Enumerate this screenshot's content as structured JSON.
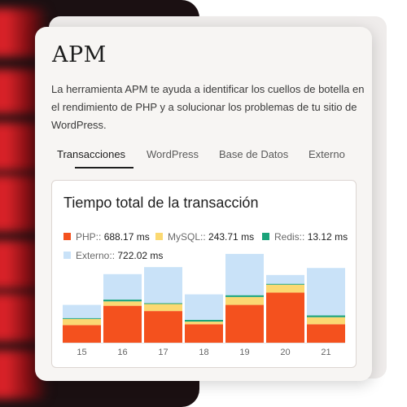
{
  "card": {
    "title": "APM",
    "description": "La herramienta APM te ayuda a identificar los cuellos de botella en el rendimiento de PHP y a solucionar los problemas de tu sitio de WordPress."
  },
  "tabs": [
    {
      "label": "Transacciones",
      "active": true
    },
    {
      "label": "WordPress",
      "active": false
    },
    {
      "label": "Base de Datos",
      "active": false
    },
    {
      "label": "Externo",
      "active": false
    }
  ],
  "panel": {
    "title": "Tiempo total de la transacción",
    "legend": [
      {
        "label": "PHP::",
        "value": "688.17 ms",
        "color": "#f4511e"
      },
      {
        "label": "MySQL::",
        "value": "243.71 ms",
        "color": "#fbd972"
      },
      {
        "label": "Redis::",
        "value": "13.12 ms",
        "color": "#1aa37a"
      },
      {
        "label": "Externo::",
        "value": "722.02 ms",
        "color": "#c9e2f8"
      }
    ]
  },
  "chart_data": {
    "type": "bar",
    "stacked": true,
    "categories": [
      "15",
      "16",
      "17",
      "18",
      "19",
      "20",
      "21"
    ],
    "ylim": [
      0,
      100
    ],
    "series": [
      {
        "name": "PHP::",
        "color": "#f4511e",
        "values": [
          20,
          42,
          36,
          21,
          43,
          57,
          21
        ]
      },
      {
        "name": "MySQL::",
        "color": "#fbd972",
        "values": [
          7,
          5,
          8,
          3,
          9,
          9,
          8
        ]
      },
      {
        "name": "Redis::",
        "color": "#1aa37a",
        "values": [
          1,
          2,
          1,
          2,
          2,
          1,
          2
        ]
      },
      {
        "name": "Externo::",
        "color": "#c9e2f8",
        "values": [
          15,
          29,
          41,
          29,
          47,
          10,
          54
        ]
      }
    ],
    "grid": false,
    "legend_position": "top-left"
  }
}
